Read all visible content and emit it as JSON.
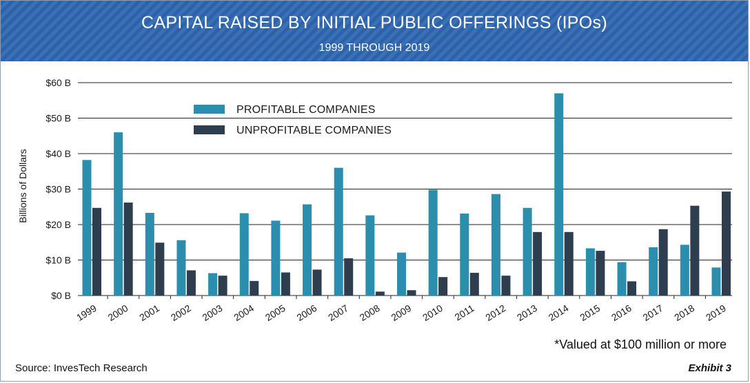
{
  "header": {
    "title": "CAPITAL RAISED BY INITIAL PUBLIC OFFERINGS (IPOs)",
    "subtitle": "1999 THROUGH 2019"
  },
  "footer": {
    "note": "*Valued at $100 million or more",
    "source": "Source: InvesTech Research",
    "exhibit": "Exhibit 3"
  },
  "colors": {
    "profitable": "#2a8eac",
    "unprofitable": "#2f3e4e",
    "grid": "#222222"
  },
  "chart_data": {
    "type": "bar",
    "title": "CAPITAL RAISED BY INITIAL PUBLIC OFFERINGS (IPOs)",
    "subtitle": "1999 THROUGH 2019",
    "xlabel": "",
    "ylabel": "Billions of Dollars",
    "ylim": [
      0,
      60
    ],
    "yticks": [
      0,
      10,
      20,
      30,
      40,
      50,
      60
    ],
    "ytick_labels": [
      "$0 B",
      "$10 B",
      "$20 B",
      "$30 B",
      "$40 B",
      "$50 B",
      "$60 B"
    ],
    "categories": [
      "1999",
      "2000",
      "2001",
      "2002",
      "2003",
      "2004",
      "2005",
      "2006",
      "2007",
      "2008",
      "2009",
      "2010",
      "2011",
      "2012",
      "2013",
      "2014",
      "2015",
      "2016",
      "2017",
      "2018",
      "2019"
    ],
    "series": [
      {
        "name": "PROFITABLE COMPANIES",
        "values": [
          38.2,
          46.0,
          23.3,
          15.6,
          6.3,
          23.2,
          21.1,
          25.7,
          36.0,
          22.6,
          12.1,
          29.8,
          23.1,
          28.6,
          24.7,
          57.0,
          13.3,
          9.4,
          13.6,
          14.3,
          7.9
        ]
      },
      {
        "name": "UNPROFITABLE COMPANIES",
        "values": [
          24.7,
          26.2,
          14.9,
          7.1,
          5.6,
          4.1,
          6.5,
          7.3,
          10.5,
          1.1,
          1.5,
          5.2,
          6.4,
          5.6,
          17.9,
          17.9,
          12.6,
          4.0,
          18.7,
          25.3,
          29.3
        ]
      }
    ],
    "legend_position": "top-left",
    "grid": true
  }
}
